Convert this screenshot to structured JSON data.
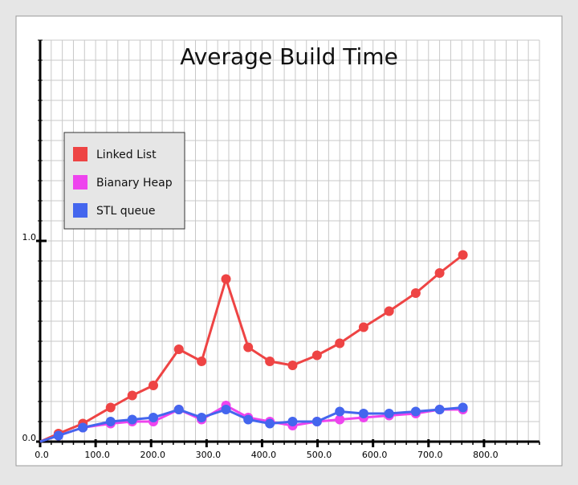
{
  "chart_data": {
    "type": "line",
    "title": "Average Build Time",
    "xlabel": "",
    "ylabel": "",
    "xlim": [
      0,
      900
    ],
    "ylim": [
      0,
      2.0
    ],
    "x_ticks_labeled": [
      "0.0",
      "100.0",
      "200.0",
      "300.0",
      "400.0",
      "500.0",
      "600.0",
      "700.0",
      "800.0"
    ],
    "x_tick_values": [
      0,
      100,
      200,
      300,
      400,
      500,
      600,
      700,
      800
    ],
    "y_ticks_labeled": [
      "0.0",
      "1.0"
    ],
    "y_tick_values": [
      0,
      1.0
    ],
    "grid": true,
    "legend_position": "top-left",
    "x": [
      0,
      33,
      77,
      127,
      166,
      204,
      250,
      291,
      335,
      375,
      414,
      455,
      499,
      540,
      583,
      629,
      677,
      720,
      762,
      806,
      838
    ],
    "series": [
      {
        "name": "Linked List",
        "color": "#ee4444",
        "values": [
          0,
          0.04,
          0.09,
          0.17,
          0.23,
          0.28,
          0.46,
          0.4,
          0.81,
          0.47,
          0.4,
          0.38,
          0.43,
          0.49,
          0.57,
          0.65,
          0.74,
          0.84,
          0.93,
          null,
          null
        ]
      },
      {
        "name": "Bianary Heap",
        "color": "#ee44ee",
        "values": [
          0,
          0.03,
          0.07,
          0.09,
          0.1,
          0.1,
          0.16,
          0.11,
          0.18,
          0.12,
          0.1,
          0.08,
          0.1,
          0.11,
          0.12,
          0.13,
          0.14,
          0.16,
          0.16,
          null,
          null
        ]
      },
      {
        "name": "STL queue",
        "color": "#4466ee",
        "values": [
          0,
          0.03,
          0.07,
          0.1,
          0.11,
          0.12,
          0.16,
          0.12,
          0.16,
          0.11,
          0.09,
          0.1,
          0.1,
          0.15,
          0.14,
          0.14,
          0.15,
          0.16,
          0.17,
          null,
          null
        ]
      }
    ]
  }
}
